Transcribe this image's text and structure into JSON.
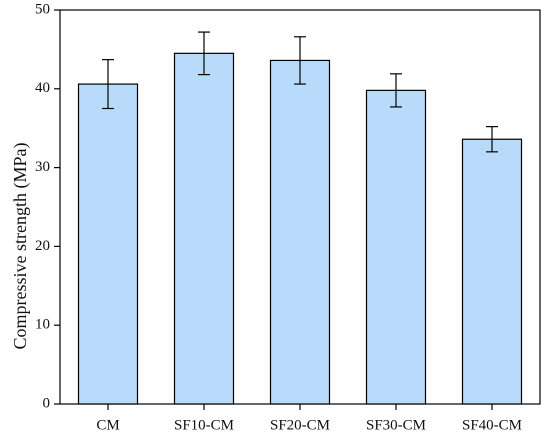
{
  "chart_data": {
    "type": "bar",
    "categories": [
      "CM",
      "SF10-CM",
      "SF20-CM",
      "SF30-CM",
      "SF40-CM"
    ],
    "values": [
      40.6,
      44.5,
      43.6,
      39.8,
      33.6
    ],
    "errors": [
      3.1,
      2.7,
      3.0,
      2.1,
      1.6
    ],
    "ylabel": "Compressive strength (MPa)",
    "xlabel": "",
    "title": "",
    "ylim": [
      0,
      50
    ],
    "yticks": [
      0,
      10,
      20,
      30,
      40,
      50
    ],
    "grid": false,
    "legend": "none",
    "bar_color": "#b9dbfb",
    "bar_edge_color": "#000000"
  }
}
